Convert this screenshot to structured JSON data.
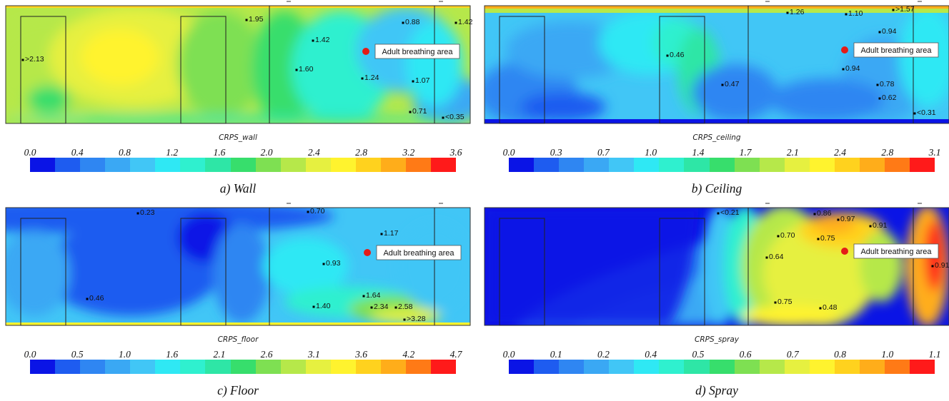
{
  "palette": [
    "#0a14e6",
    "#1e5cf0",
    "#2f86f2",
    "#3aa8f4",
    "#41c6f6",
    "#2fe8f4",
    "#2ff0cf",
    "#2ee6a6",
    "#37de6c",
    "#7ee052",
    "#b6e84a",
    "#e6f040",
    "#fff32e",
    "#ffd21e",
    "#ffad1a",
    "#ff7a16",
    "#ff1a1a"
  ],
  "callout_dot_color": "#e41b17",
  "chart_data": [
    {
      "type": "heatmap",
      "panel": "a",
      "caption": "a)  Wall",
      "colorbar_title": "CRPS_wall",
      "tick_labels": [
        "0.0",
        "0.4",
        "0.8",
        "1.2",
        "1.6",
        "2.0",
        "2.4",
        "2.8",
        "3.2",
        "3.6"
      ],
      "range": [
        0.0,
        3.6
      ],
      "callout": "Adult breathing area",
      "probes": [
        "1.95",
        "1.42",
        "0.88",
        "1.42",
        "1.60",
        "1.24",
        "1.07",
        ">2.13",
        "0.71",
        "<0.35"
      ]
    },
    {
      "type": "heatmap",
      "panel": "b",
      "caption": "b)  Ceiling",
      "colorbar_title": "CRPS_ceiling",
      "tick_labels": [
        "0.0",
        "0.3",
        "0.7",
        "1.0",
        "1.4",
        "1.7",
        "2.1",
        "2.4",
        "2.8",
        "3.1"
      ],
      "range": [
        0.0,
        3.1
      ],
      "callout": "Adult breathing area",
      "probes": [
        "1.26",
        "1.10",
        ">1.57",
        "0.94",
        "0.46",
        "0.94",
        "0.47",
        "0.78",
        "0.62",
        "<0.31"
      ]
    },
    {
      "type": "heatmap",
      "panel": "c",
      "caption": "c)  Floor",
      "colorbar_title": "CRPS_floor",
      "tick_labels": [
        "0.0",
        "0.5",
        "1.0",
        "1.6",
        "2.1",
        "2.6",
        "3.1",
        "3.6",
        "4.2",
        "4.7"
      ],
      "range": [
        0.0,
        4.7
      ],
      "callout": "Adult breathing area",
      "probes": [
        "0.70",
        "1.17",
        "0.93",
        "0.46",
        "1.64",
        "1.40",
        "2.34",
        "2.58",
        ">3.28",
        "0.23"
      ]
    },
    {
      "type": "heatmap",
      "panel": "d",
      "caption": "d)  Spray",
      "colorbar_title": "CRPS_spray",
      "tick_labels": [
        "0.0",
        "0.1",
        "0.2",
        "0.4",
        "0.5",
        "0.6",
        "0.7",
        "0.8",
        "1.0",
        "1.1"
      ],
      "range": [
        0.0,
        1.1
      ],
      "callout": "Adult breathing area",
      "probes": [
        "<0.21",
        "0.86",
        "0.97",
        "0.91",
        "0.70",
        "0.75",
        "0.64",
        "0.91",
        "0.75",
        "0.48"
      ]
    }
  ]
}
